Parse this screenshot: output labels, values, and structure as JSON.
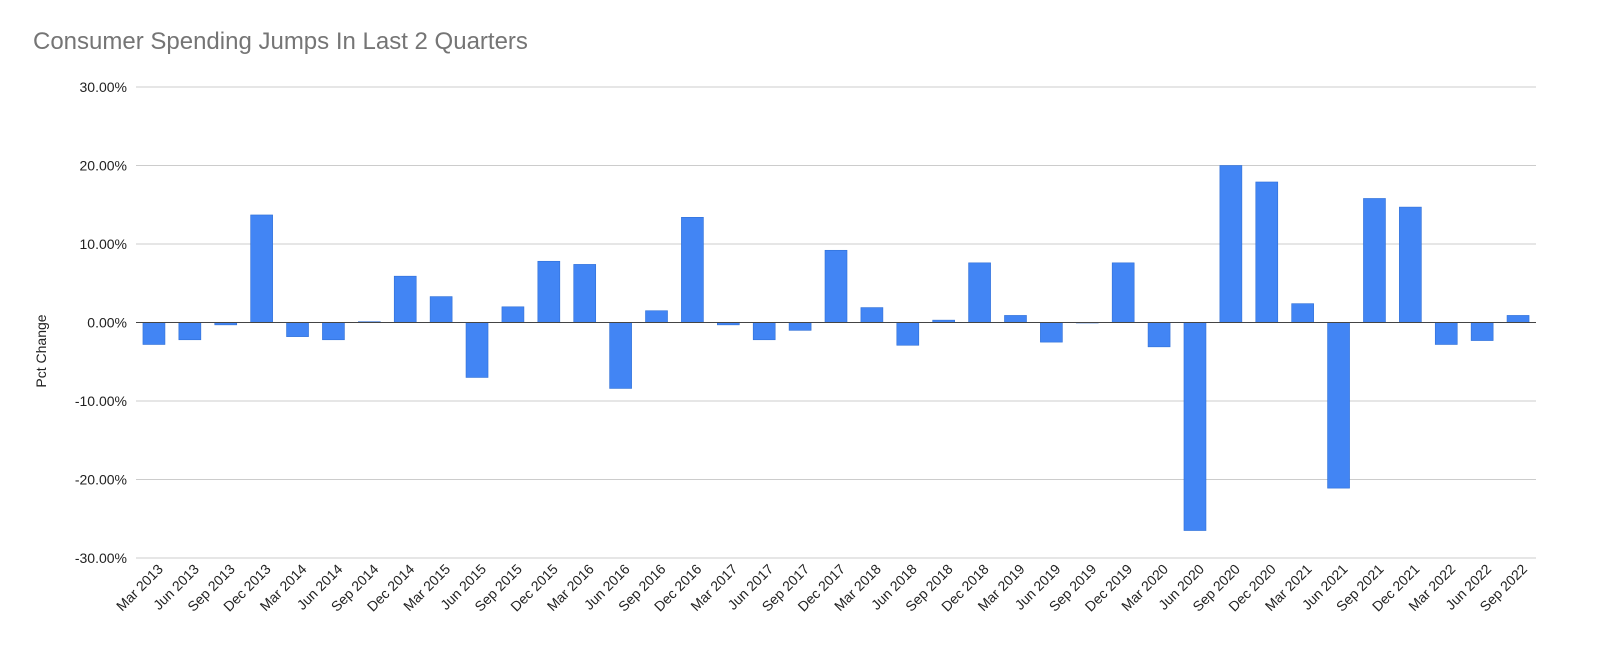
{
  "chart_data": {
    "type": "bar",
    "title": "Consumer Spending Jumps In Last 2 Quarters",
    "xlabel": "",
    "ylabel": "Pct Change",
    "ylim": [
      -30,
      30
    ],
    "yticks": [
      30,
      20,
      10,
      0,
      -10,
      -20,
      -30
    ],
    "ytick_labels": [
      "30.00%",
      "20.00%",
      "10.00%",
      "0.00%",
      "-10.00%",
      "-20.00%",
      "-30.00%"
    ],
    "grid": true,
    "legend": "none",
    "bar_color": "#4285f4",
    "categories": [
      "Mar 2013",
      "Jun 2013",
      "Sep 2013",
      "Dec 2013",
      "Mar 2014",
      "Jun 2014",
      "Sep 2014",
      "Dec 2014",
      "Mar 2015",
      "Jun 2015",
      "Sep 2015",
      "Dec 2015",
      "Mar 2016",
      "Jun 2016",
      "Sep 2016",
      "Dec 2016",
      "Mar 2017",
      "Jun 2017",
      "Sep 2017",
      "Dec 2017",
      "Mar 2018",
      "Jun 2018",
      "Sep 2018",
      "Dec 2018",
      "Mar 2019",
      "Jun 2019",
      "Sep 2019",
      "Dec 2019",
      "Mar 2020",
      "Jun 2020",
      "Sep 2020",
      "Dec 2020",
      "Mar 2021",
      "Jun 2021",
      "Sep 2021",
      "Dec 2021",
      "Mar 2022",
      "Jun 2022",
      "Sep 2022"
    ],
    "values": [
      -2.8,
      -2.2,
      -0.3,
      13.7,
      -1.8,
      -2.2,
      0.1,
      5.9,
      3.3,
      -7.0,
      2.0,
      7.8,
      7.4,
      -8.4,
      1.5,
      13.4,
      -0.3,
      -2.2,
      -1.0,
      9.2,
      1.9,
      -2.9,
      0.3,
      7.6,
      0.9,
      -2.5,
      0.0,
      7.6,
      -3.1,
      -26.5,
      20.0,
      17.9,
      2.4,
      -21.1,
      15.8,
      14.7,
      -2.8,
      -2.3,
      0.9
    ]
  }
}
